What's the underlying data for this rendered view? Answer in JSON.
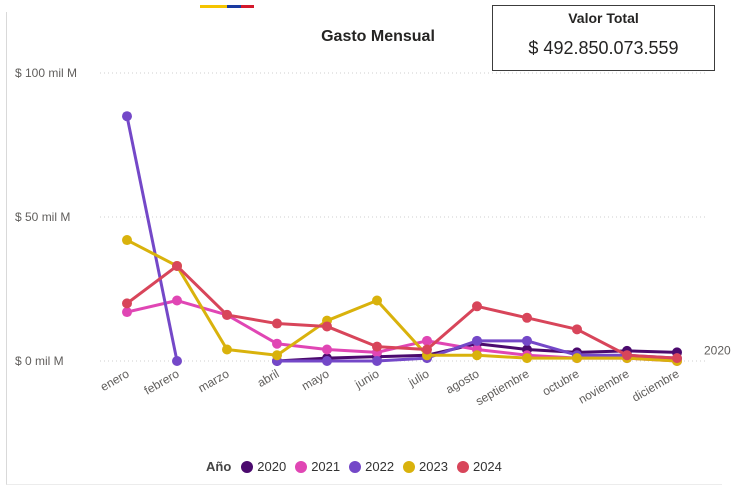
{
  "colors": {
    "flag": [
      "#f5c400",
      "#1a3aa0",
      "#d4192c"
    ]
  },
  "card": {
    "label": "Valor Total",
    "value": "$ 492.850.073.559"
  },
  "chart_data": {
    "type": "line",
    "title": "Gasto Mensual",
    "xlabel": "",
    "ylabel": "",
    "legend_title": "Año",
    "legend_position": "bottom",
    "grid": true,
    "categories": [
      "enero",
      "febrero",
      "marzo",
      "abril",
      "mayo",
      "junio",
      "julio",
      "agosto",
      "septiembre",
      "octubre",
      "noviembre",
      "diciembre"
    ],
    "yticks": [
      {
        "value": 0,
        "label": "$ 0 mil M"
      },
      {
        "value": 50,
        "label": "$ 50 mil M"
      },
      {
        "value": 100,
        "label": "$ 100 mil M"
      }
    ],
    "ylim": [
      0,
      100
    ],
    "yunit": "mil M",
    "series": [
      {
        "name": "2020",
        "color": "#4b0a6e",
        "values": [
          null,
          null,
          null,
          0,
          1,
          1.5,
          2,
          6,
          4,
          3,
          3.5,
          3
        ],
        "end_label": "2020"
      },
      {
        "name": "2021",
        "color": "#e046b4",
        "values": [
          17,
          21,
          16,
          6,
          4,
          3,
          7,
          4,
          2,
          1,
          1,
          0
        ]
      },
      {
        "name": "2022",
        "color": "#7448c8",
        "values": [
          85,
          0,
          null,
          0,
          0,
          0,
          1,
          7,
          7,
          2,
          2,
          1
        ]
      },
      {
        "name": "2023",
        "color": "#d9b20c",
        "values": [
          42,
          33,
          4,
          2,
          14,
          21,
          2,
          2,
          1,
          1,
          1,
          0
        ]
      },
      {
        "name": "2024",
        "color": "#d8455a",
        "values": [
          20,
          33,
          16,
          13,
          12,
          5,
          4,
          19,
          15,
          11,
          2,
          1
        ]
      }
    ]
  }
}
